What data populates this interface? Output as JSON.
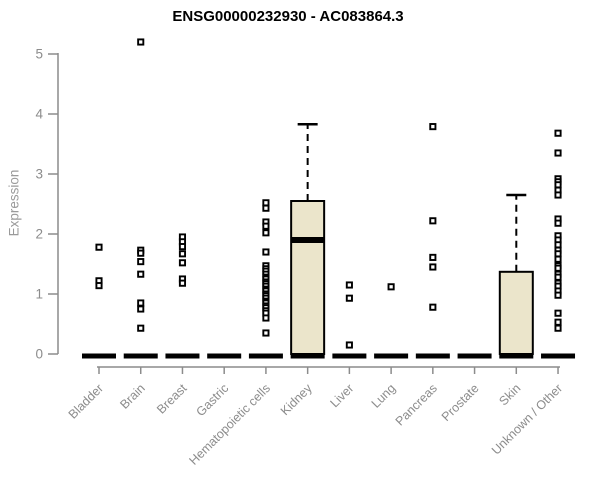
{
  "chart_data": {
    "type": "boxplot",
    "title": "ENSG00000232930 - AC083864.3",
    "ylabel": "Expression",
    "ylim": [
      0,
      5.3
    ],
    "yticks": [
      0,
      1,
      2,
      3,
      4,
      5
    ],
    "grid": false,
    "legend": null,
    "categories": [
      "Bladder",
      "Brain",
      "Breast",
      "Gastric",
      "Hematopoietic cells",
      "Kidney",
      "Liver",
      "Lung",
      "Pancreas",
      "Prostate",
      "Skin",
      "Unknown / Other"
    ],
    "series": [
      {
        "name": "Bladder",
        "q1": 0,
        "median": 0,
        "q3": 0,
        "whisker_low": 0,
        "whisker_high": 0,
        "points": [
          1.78,
          1.22,
          1.14
        ]
      },
      {
        "name": "Brain",
        "q1": 0,
        "median": 0,
        "q3": 0,
        "whisker_low": 0,
        "whisker_high": 0,
        "points": [
          5.2,
          1.73,
          1.68,
          1.54,
          1.33,
          0.85,
          0.75,
          0.43
        ]
      },
      {
        "name": "Breast",
        "q1": 0,
        "median": 0,
        "q3": 0,
        "whisker_low": 0,
        "whisker_high": 0,
        "points": [
          1.95,
          1.87,
          1.79,
          1.67,
          1.52,
          1.25,
          1.18
        ]
      },
      {
        "name": "Gastric",
        "q1": 0,
        "median": 0,
        "q3": 0,
        "whisker_low": 0,
        "whisker_high": 0,
        "points": []
      },
      {
        "name": "Hematopoietic cells",
        "q1": 0,
        "median": 0,
        "q3": 0,
        "whisker_low": 0,
        "whisker_high": 0,
        "points": [
          2.52,
          2.43,
          2.2,
          2.13,
          2.02,
          1.7,
          1.47,
          1.42,
          1.38,
          1.33,
          1.28,
          1.25,
          1.2,
          1.17,
          1.13,
          1.08,
          1.05,
          1.0,
          0.97,
          0.93,
          0.88,
          0.85,
          0.8,
          0.77,
          0.72,
          0.68,
          0.6,
          0.35
        ]
      },
      {
        "name": "Kidney",
        "q1": 0,
        "median": 1.9,
        "q3": 2.55,
        "whisker_low": 0,
        "whisker_high": 3.83,
        "points": []
      },
      {
        "name": "Liver",
        "q1": 0,
        "median": 0,
        "q3": 0,
        "whisker_low": 0,
        "whisker_high": 0,
        "points": [
          1.15,
          0.93,
          0.15
        ]
      },
      {
        "name": "Lung",
        "q1": 0,
        "median": 0,
        "q3": 0,
        "whisker_low": 0,
        "whisker_high": 0,
        "points": [
          1.12
        ]
      },
      {
        "name": "Pancreas",
        "q1": 0,
        "median": 0,
        "q3": 0,
        "whisker_low": 0,
        "whisker_high": 0,
        "points": [
          3.79,
          2.22,
          1.61,
          1.45,
          0.78
        ]
      },
      {
        "name": "Prostate",
        "q1": 0,
        "median": 0,
        "q3": 0,
        "whisker_low": 0,
        "whisker_high": 0,
        "points": []
      },
      {
        "name": "Skin",
        "q1": 0,
        "median": 0,
        "q3": 1.37,
        "whisker_low": 0,
        "whisker_high": 2.65,
        "points": []
      },
      {
        "name": "Unknown / Other",
        "q1": 0,
        "median": 0,
        "q3": 0,
        "whisker_low": 0,
        "whisker_high": 0,
        "points": [
          3.68,
          3.35,
          2.92,
          2.87,
          2.82,
          2.73,
          2.65,
          2.25,
          2.18,
          1.97,
          1.9,
          1.82,
          1.73,
          1.67,
          1.58,
          1.47,
          1.43,
          1.33,
          1.28,
          1.18,
          1.13,
          1.05,
          0.98,
          0.68,
          0.53,
          0.43
        ]
      }
    ],
    "colors": {
      "box_fill": "#EBE5CB",
      "box_border": "#000000",
      "median": "#000000",
      "point_stroke": "#000000",
      "point_fill": "#FFFFFF",
      "axis": "#8C8C8C",
      "tick_label": "#8C8C8C",
      "category_label": "#8C8C8C",
      "title": "#000000",
      "background": "#FFFFFF"
    }
  }
}
